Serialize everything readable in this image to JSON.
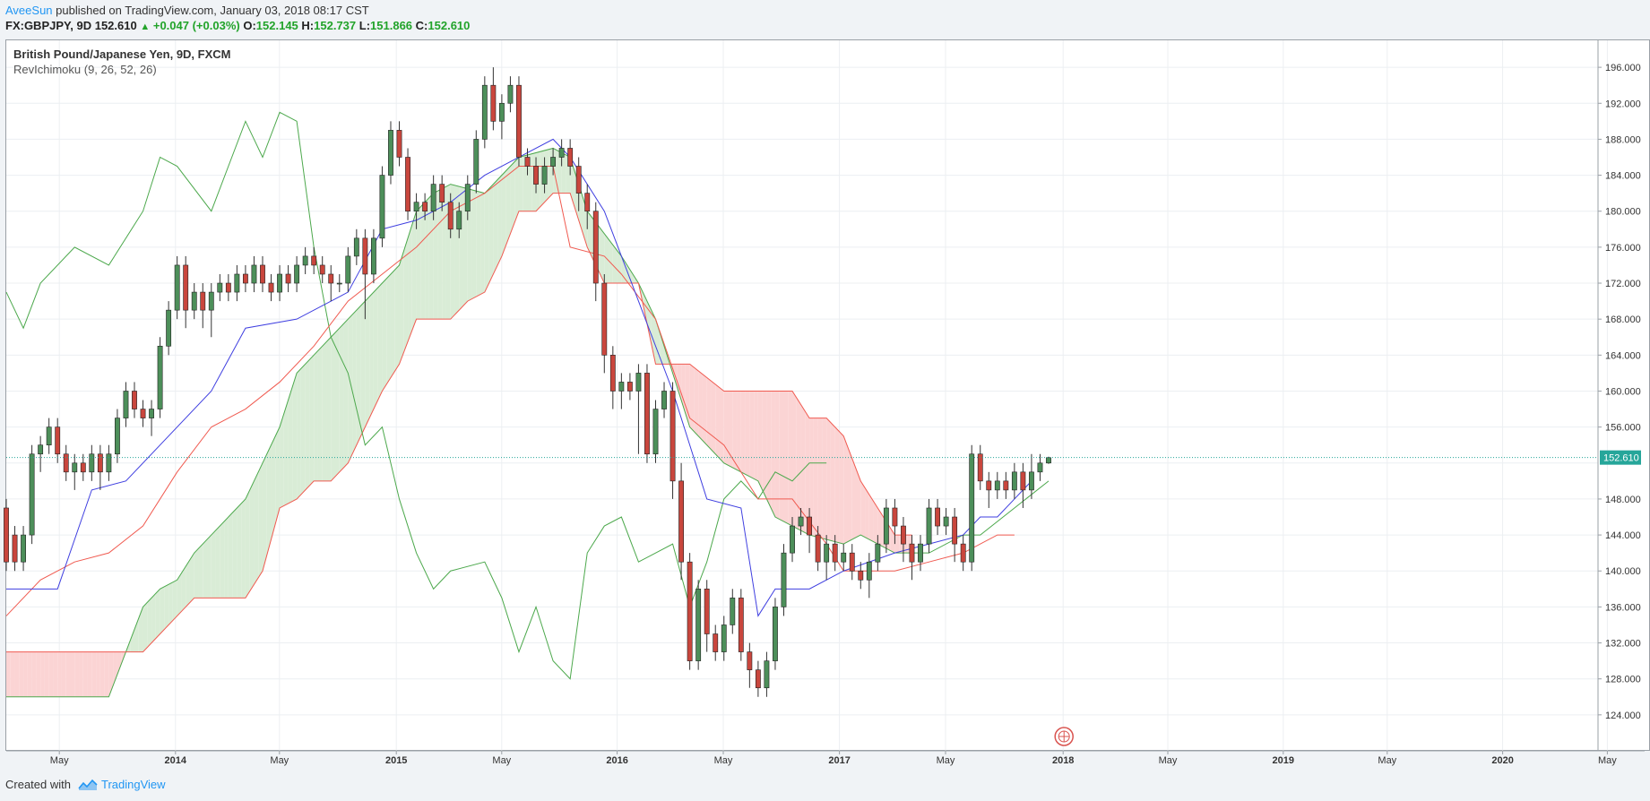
{
  "header": {
    "author": "AveeSun",
    "published_text": "published on TradingView.com, January 03, 2018 08:17 CST",
    "symbol_interval": "FX:GBPJPY, 9D",
    "last": "152.610",
    "change": "+0.047 (+0.03%)",
    "o_label": "O:",
    "o_value": "152.145",
    "h_label": "H:",
    "h_value": "152.737",
    "l_label": "L:",
    "l_value": "151.866",
    "c_label": "C:",
    "c_value": "152.610"
  },
  "legend": {
    "title": "British Pound/Japanese Yen, 9D, FXCM",
    "indicator": "RevIchimoku (9, 26, 52, 26)"
  },
  "footer": {
    "created_with": "Created with",
    "brand": "TradingView"
  },
  "colors": {
    "up_candle": "#4d8f5a",
    "down_candle": "#c9463d",
    "conversion_line": "#3f3fe0",
    "base_line": "#f05a50",
    "lagging_span": "#4ca84c",
    "cloud_bull": "#d9ecd6",
    "cloud_bear": "#fbd4d4",
    "last_price_badge": "#26a69a"
  },
  "chart_data": {
    "type": "candlestick",
    "title": "British Pound/Japanese Yen, 9D, FXCM",
    "indicator": "RevIchimoku (9, 26, 52, 26)",
    "ylim": [
      120,
      199
    ],
    "y_ticks": [
      "124.000",
      "128.000",
      "132.000",
      "136.000",
      "140.000",
      "144.000",
      "148.000",
      "152.000",
      "156.000",
      "160.000",
      "164.000",
      "168.000",
      "172.000",
      "176.000",
      "180.000",
      "184.000",
      "188.000",
      "192.000",
      "196.000"
    ],
    "x_ticks": [
      "May",
      "2014",
      "May",
      "2015",
      "May",
      "2016",
      "May",
      "2017",
      "May",
      "2018",
      "May",
      "2019",
      "May",
      "2020",
      "May"
    ],
    "x_tick_pos": [
      0.074,
      0.236,
      0.381,
      0.544,
      0.691,
      0.852,
      1.0,
      1.162,
      1.31,
      1.474,
      1.62,
      1.781,
      1.926,
      2.087,
      2.233
    ],
    "last_price": "152.610",
    "grid": true,
    "candles": [
      [
        147,
        141,
        148,
        140
      ],
      [
        144,
        141,
        145,
        140
      ],
      [
        141,
        144,
        145,
        140
      ],
      [
        144,
        153,
        154,
        143
      ],
      [
        153,
        154,
        155,
        151
      ],
      [
        154,
        156,
        157,
        153
      ],
      [
        156,
        153,
        157,
        152
      ],
      [
        153,
        151,
        154,
        150
      ],
      [
        151,
        152,
        153,
        149
      ],
      [
        152,
        151,
        153,
        150
      ],
      [
        151,
        153,
        154,
        150
      ],
      [
        153,
        151,
        154,
        149
      ],
      [
        151,
        153,
        154,
        150
      ],
      [
        153,
        157,
        158,
        152
      ],
      [
        157,
        160,
        161,
        156
      ],
      [
        160,
        158,
        161,
        157
      ],
      [
        158,
        157,
        159,
        156
      ],
      [
        157,
        158,
        159,
        155
      ],
      [
        158,
        165,
        166,
        157
      ],
      [
        165,
        169,
        170,
        164
      ],
      [
        169,
        174,
        175,
        168
      ],
      [
        174,
        169,
        175,
        167
      ],
      [
        169,
        171,
        172,
        168
      ],
      [
        171,
        169,
        172,
        167
      ],
      [
        169,
        171,
        172,
        166
      ],
      [
        171,
        172,
        173,
        170
      ],
      [
        172,
        171,
        173,
        170
      ],
      [
        171,
        173,
        174,
        170
      ],
      [
        173,
        172,
        174,
        171
      ],
      [
        172,
        174,
        175,
        171
      ],
      [
        174,
        172,
        175,
        171
      ],
      [
        172,
        171,
        173,
        170
      ],
      [
        171,
        173,
        174,
        170
      ],
      [
        173,
        172,
        174,
        171
      ],
      [
        172,
        174,
        175,
        171
      ],
      [
        174,
        175,
        176,
        173
      ],
      [
        175,
        174,
        176,
        173
      ],
      [
        174,
        173,
        175,
        172
      ],
      [
        173,
        172,
        174,
        170
      ],
      [
        172,
        172,
        173,
        171
      ],
      [
        172,
        175,
        176,
        171
      ],
      [
        175,
        177,
        178,
        174
      ],
      [
        177,
        173,
        178,
        168
      ],
      [
        173,
        177,
        178,
        172
      ],
      [
        177,
        184,
        185,
        176
      ],
      [
        184,
        189,
        190,
        183
      ],
      [
        189,
        186,
        190,
        185
      ],
      [
        186,
        180,
        187,
        179
      ],
      [
        180,
        181,
        182,
        178
      ],
      [
        181,
        180,
        182,
        179
      ],
      [
        180,
        183,
        184,
        179
      ],
      [
        183,
        181,
        184,
        180
      ],
      [
        181,
        178,
        182,
        177
      ],
      [
        178,
        180,
        181,
        177
      ],
      [
        180,
        183,
        184,
        179
      ],
      [
        183,
        188,
        189,
        182
      ],
      [
        188,
        194,
        195,
        187
      ],
      [
        194,
        190,
        196,
        189
      ],
      [
        190,
        192,
        193,
        188
      ],
      [
        192,
        194,
        195,
        191
      ],
      [
        194,
        186,
        195,
        185
      ],
      [
        186,
        185,
        187,
        184
      ],
      [
        185,
        183,
        186,
        182
      ],
      [
        183,
        185,
        186,
        182
      ],
      [
        185,
        186,
        187,
        184
      ],
      [
        186,
        187,
        188,
        185
      ],
      [
        187,
        185,
        188,
        184
      ],
      [
        185,
        182,
        186,
        180
      ],
      [
        182,
        180,
        183,
        178
      ],
      [
        180,
        172,
        181,
        170
      ],
      [
        172,
        164,
        173,
        162
      ],
      [
        164,
        160,
        165,
        158
      ],
      [
        160,
        161,
        162,
        158
      ],
      [
        161,
        160,
        162,
        159
      ],
      [
        160,
        162,
        163,
        153
      ],
      [
        162,
        153,
        163,
        152
      ],
      [
        153,
        158,
        159,
        152
      ],
      [
        158,
        160,
        161,
        157
      ],
      [
        160,
        150,
        161,
        148
      ],
      [
        150,
        141,
        152,
        139
      ],
      [
        141,
        130,
        142,
        129
      ],
      [
        130,
        138,
        139,
        129
      ],
      [
        138,
        133,
        139,
        131
      ],
      [
        133,
        131,
        134,
        130
      ],
      [
        131,
        134,
        135,
        130
      ],
      [
        134,
        137,
        138,
        133
      ],
      [
        137,
        131,
        138,
        130
      ],
      [
        131,
        129,
        132,
        127
      ],
      [
        129,
        127,
        130,
        126
      ],
      [
        127,
        130,
        131,
        126
      ],
      [
        130,
        136,
        137,
        129
      ],
      [
        136,
        142,
        143,
        135
      ],
      [
        142,
        145,
        146,
        141
      ],
      [
        145,
        146,
        147,
        144
      ],
      [
        146,
        144,
        147,
        142
      ],
      [
        144,
        141,
        145,
        140
      ],
      [
        141,
        143,
        144,
        139
      ],
      [
        143,
        141,
        144,
        140
      ],
      [
        141,
        142,
        143,
        140
      ],
      [
        142,
        140,
        143,
        139
      ],
      [
        140,
        139,
        141,
        138
      ],
      [
        139,
        141,
        142,
        137
      ],
      [
        141,
        143,
        144,
        140
      ],
      [
        143,
        147,
        148,
        142
      ],
      [
        147,
        145,
        148,
        143
      ],
      [
        145,
        143,
        146,
        141
      ],
      [
        143,
        141,
        144,
        139
      ],
      [
        141,
        143,
        144,
        140
      ],
      [
        143,
        147,
        148,
        142
      ],
      [
        147,
        145,
        148,
        144
      ],
      [
        145,
        146,
        147,
        144
      ],
      [
        146,
        143,
        147,
        141
      ],
      [
        143,
        141,
        144,
        140
      ],
      [
        141,
        153,
        154,
        140
      ],
      [
        153,
        150,
        154,
        149
      ],
      [
        150,
        149,
        151,
        147
      ],
      [
        149,
        150,
        151,
        148
      ],
      [
        150,
        149,
        151,
        148
      ],
      [
        149,
        151,
        152,
        148
      ],
      [
        151,
        149,
        152,
        147
      ],
      [
        149,
        151,
        153,
        148
      ],
      [
        151,
        152,
        153,
        150
      ],
      [
        152,
        152.6,
        152.7,
        151.9
      ]
    ],
    "conversion_line": [
      [
        0,
        138
      ],
      [
        6,
        138
      ],
      [
        10,
        149
      ],
      [
        14,
        150
      ],
      [
        18,
        154
      ],
      [
        24,
        160
      ],
      [
        28,
        167
      ],
      [
        34,
        168
      ],
      [
        40,
        171
      ],
      [
        44,
        178
      ],
      [
        48,
        179
      ],
      [
        52,
        181
      ],
      [
        56,
        184
      ],
      [
        60,
        186
      ],
      [
        64,
        188
      ],
      [
        66,
        186
      ],
      [
        70,
        180
      ],
      [
        74,
        170
      ],
      [
        78,
        160
      ],
      [
        82,
        148
      ],
      [
        86,
        147
      ],
      [
        88,
        135
      ],
      [
        90,
        138
      ],
      [
        94,
        138
      ],
      [
        98,
        140
      ],
      [
        104,
        142
      ],
      [
        108,
        143
      ],
      [
        112,
        144
      ],
      [
        114,
        146
      ],
      [
        116,
        146
      ],
      [
        118,
        148
      ],
      [
        120,
        150
      ]
    ],
    "base_line": [
      [
        0,
        135
      ],
      [
        4,
        139
      ],
      [
        8,
        141
      ],
      [
        12,
        142
      ],
      [
        16,
        145
      ],
      [
        20,
        151
      ],
      [
        24,
        156
      ],
      [
        28,
        158
      ],
      [
        32,
        161
      ],
      [
        36,
        165
      ],
      [
        40,
        170
      ],
      [
        44,
        173
      ],
      [
        48,
        176
      ],
      [
        52,
        180
      ],
      [
        56,
        182
      ],
      [
        60,
        185
      ],
      [
        64,
        185
      ],
      [
        66,
        176
      ],
      [
        70,
        175
      ],
      [
        72,
        173
      ],
      [
        76,
        168
      ],
      [
        80,
        157
      ],
      [
        84,
        154
      ],
      [
        88,
        148
      ],
      [
        92,
        148
      ],
      [
        96,
        143
      ],
      [
        98,
        140
      ],
      [
        104,
        140
      ],
      [
        108,
        141
      ],
      [
        112,
        142
      ],
      [
        116,
        144
      ],
      [
        118,
        144
      ]
    ],
    "lagging_span": [
      [
        0,
        171
      ],
      [
        2,
        167
      ],
      [
        4,
        172
      ],
      [
        8,
        176
      ],
      [
        12,
        174
      ],
      [
        16,
        180
      ],
      [
        18,
        186
      ],
      [
        20,
        185
      ],
      [
        24,
        180
      ],
      [
        28,
        190
      ],
      [
        30,
        186
      ],
      [
        32,
        191
      ],
      [
        34,
        190
      ],
      [
        36,
        176
      ],
      [
        38,
        166
      ],
      [
        40,
        162
      ],
      [
        42,
        154
      ],
      [
        44,
        156
      ],
      [
        46,
        148
      ],
      [
        48,
        142
      ],
      [
        50,
        138
      ],
      [
        52,
        140
      ],
      [
        56,
        141
      ],
      [
        58,
        137
      ],
      [
        60,
        131
      ],
      [
        62,
        136
      ],
      [
        64,
        130
      ],
      [
        66,
        128
      ],
      [
        68,
        142
      ],
      [
        70,
        145
      ],
      [
        72,
        146
      ],
      [
        74,
        141
      ],
      [
        76,
        142
      ],
      [
        78,
        143
      ],
      [
        80,
        136
      ],
      [
        82,
        141
      ],
      [
        84,
        148
      ],
      [
        86,
        150
      ],
      [
        88,
        148
      ],
      [
        90,
        151
      ],
      [
        92,
        150
      ],
      [
        94,
        152
      ],
      [
        96,
        152
      ]
    ],
    "span_a": [
      [
        0,
        126
      ],
      [
        4,
        126
      ],
      [
        8,
        126
      ],
      [
        12,
        126
      ],
      [
        16,
        136
      ],
      [
        18,
        138
      ],
      [
        20,
        139
      ],
      [
        22,
        142
      ],
      [
        24,
        144
      ],
      [
        28,
        148
      ],
      [
        30,
        152
      ],
      [
        32,
        156
      ],
      [
        34,
        162
      ],
      [
        36,
        164
      ],
      [
        38,
        166
      ],
      [
        40,
        168
      ],
      [
        42,
        170
      ],
      [
        44,
        172
      ],
      [
        46,
        174
      ],
      [
        48,
        180
      ],
      [
        50,
        182
      ],
      [
        52,
        183
      ],
      [
        56,
        182
      ],
      [
        60,
        186
      ],
      [
        64,
        187
      ],
      [
        66,
        186
      ],
      [
        68,
        180
      ],
      [
        72,
        175
      ],
      [
        74,
        172
      ],
      [
        76,
        168
      ],
      [
        80,
        156
      ],
      [
        84,
        152
      ],
      [
        88,
        150
      ],
      [
        90,
        146
      ],
      [
        94,
        144
      ],
      [
        98,
        143
      ],
      [
        100,
        144
      ],
      [
        104,
        142
      ],
      [
        108,
        142
      ],
      [
        112,
        144
      ],
      [
        114,
        144
      ],
      [
        118,
        147
      ],
      [
        122,
        150
      ]
    ],
    "span_b": [
      [
        0,
        131
      ],
      [
        16,
        131
      ],
      [
        18,
        133
      ],
      [
        20,
        135
      ],
      [
        22,
        137
      ],
      [
        24,
        137
      ],
      [
        28,
        137
      ],
      [
        30,
        140
      ],
      [
        32,
        147
      ],
      [
        34,
        148
      ],
      [
        36,
        150
      ],
      [
        38,
        150
      ],
      [
        40,
        152
      ],
      [
        42,
        156
      ],
      [
        44,
        160
      ],
      [
        46,
        163
      ],
      [
        48,
        168
      ],
      [
        50,
        168
      ],
      [
        52,
        168
      ],
      [
        54,
        170
      ],
      [
        56,
        171
      ],
      [
        58,
        175
      ],
      [
        60,
        180
      ],
      [
        62,
        180
      ],
      [
        64,
        182
      ],
      [
        66,
        182
      ],
      [
        68,
        176
      ],
      [
        70,
        172
      ],
      [
        72,
        172
      ],
      [
        74,
        172
      ],
      [
        76,
        163
      ],
      [
        80,
        163
      ],
      [
        84,
        160
      ],
      [
        88,
        160
      ],
      [
        92,
        160
      ],
      [
        94,
        157
      ],
      [
        96,
        157
      ],
      [
        98,
        155
      ],
      [
        100,
        150
      ],
      [
        102,
        147
      ],
      [
        104,
        144
      ],
      [
        106,
        144
      ]
    ]
  }
}
